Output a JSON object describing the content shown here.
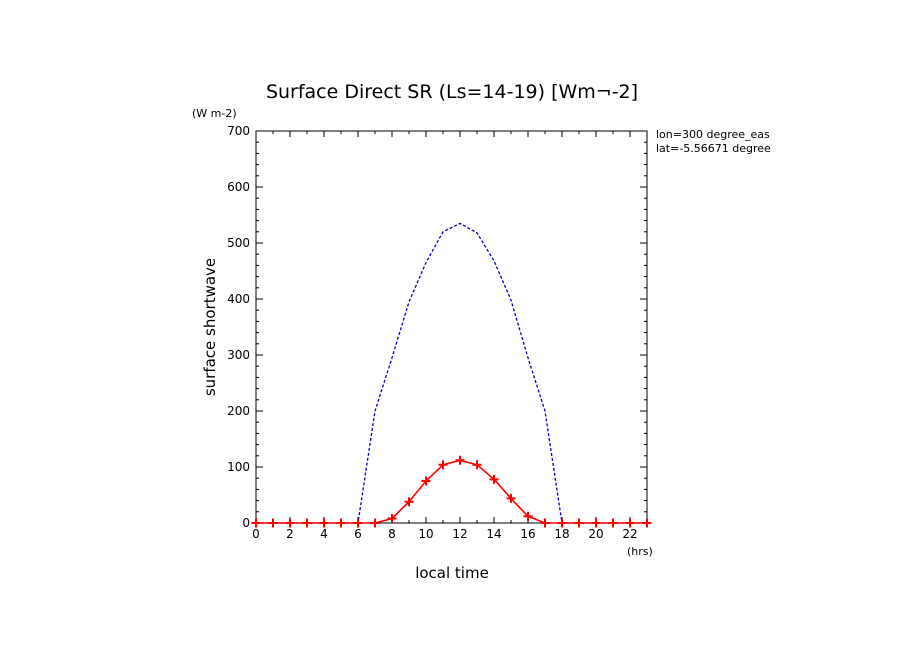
{
  "chart_data": {
    "type": "line",
    "title": "Surface Direct SR (Ls=14-19) [Wm¬-2]",
    "ylabel": "surface shortwave",
    "yunit": "(W m-2)",
    "xlabel": "local time",
    "xunit": "(hrs)",
    "annotations": [
      "lon=300 degree_eas",
      "lat=-5.56671 degree"
    ],
    "xlim": [
      0,
      23
    ],
    "ylim": [
      0,
      700
    ],
    "xticks": [
      0,
      2,
      4,
      6,
      8,
      10,
      12,
      14,
      16,
      18,
      20,
      22
    ],
    "yticks": [
      0,
      100,
      200,
      300,
      400,
      500,
      600,
      700
    ],
    "x": [
      0,
      1,
      2,
      3,
      4,
      5,
      6,
      7,
      8,
      9,
      10,
      11,
      12,
      13,
      14,
      15,
      16,
      17,
      18,
      19,
      20,
      21,
      22,
      23
    ],
    "series": [
      {
        "style": "dashed",
        "color": "#0000cc",
        "markers": false,
        "values": [
          0,
          0,
          0,
          0,
          0,
          0,
          0,
          200,
          295,
          395,
          465,
          520,
          535,
          518,
          468,
          398,
          295,
          200,
          0,
          0,
          0,
          0,
          0,
          0
        ]
      },
      {
        "style": "solid",
        "color": "#ff0000",
        "markers": true,
        "values": [
          0,
          0,
          0,
          0,
          0,
          0,
          0,
          0,
          8,
          38,
          75,
          104,
          112,
          104,
          78,
          44,
          12,
          0,
          0,
          0,
          0,
          0,
          0,
          0
        ]
      }
    ]
  }
}
